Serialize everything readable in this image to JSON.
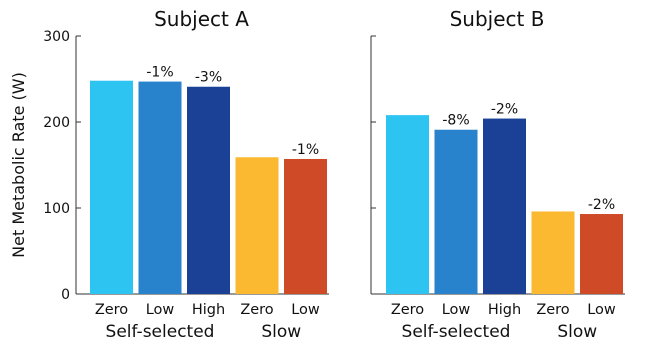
{
  "chart_data": [
    {
      "type": "bar",
      "title": "Subject A",
      "ylabel": "Net Metabolic Rate (W)",
      "ylim": [
        0,
        300
      ],
      "yticks": [
        0,
        100,
        200,
        300
      ],
      "categories": [
        "Zero",
        "Low",
        "High",
        "Zero",
        "Low"
      ],
      "groups": [
        {
          "label": "Self-selected",
          "indices": [
            0,
            1,
            2
          ]
        },
        {
          "label": "Slow",
          "indices": [
            3,
            4
          ]
        }
      ],
      "values": [
        248,
        247,
        241,
        159,
        157
      ],
      "data_labels": [
        "",
        "-1%",
        "-3%",
        "",
        "-1%"
      ],
      "colors": [
        "#2ec4f1",
        "#2882cc",
        "#1a4196",
        "#fbb931",
        "#cf4b28"
      ]
    },
    {
      "type": "bar",
      "title": "Subject B",
      "ylabel": "",
      "ylim": [
        0,
        300
      ],
      "yticks": [
        0,
        100,
        200,
        300
      ],
      "categories": [
        "Zero",
        "Low",
        "High",
        "Zero",
        "Low"
      ],
      "groups": [
        {
          "label": "Self-selected",
          "indices": [
            0,
            1,
            2
          ]
        },
        {
          "label": "Slow",
          "indices": [
            3,
            4
          ]
        }
      ],
      "values": [
        208,
        191,
        204,
        96,
        93
      ],
      "data_labels": [
        "",
        "-8%",
        "-2%",
        "",
        "-2%"
      ],
      "colors": [
        "#2ec4f1",
        "#2882cc",
        "#1a4196",
        "#fbb931",
        "#cf4b28"
      ]
    }
  ]
}
